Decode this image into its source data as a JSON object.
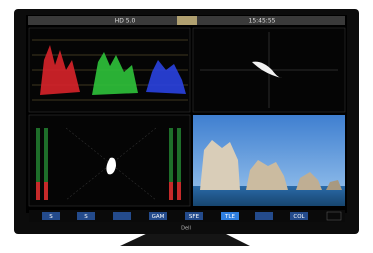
{
  "top_bar": {
    "format": "HD 5.0",
    "time": "15:45:55"
  },
  "buttons": [
    "S",
    "S",
    "GAM",
    "SFE",
    "TLE",
    "COL"
  ],
  "brand": "Dell"
}
